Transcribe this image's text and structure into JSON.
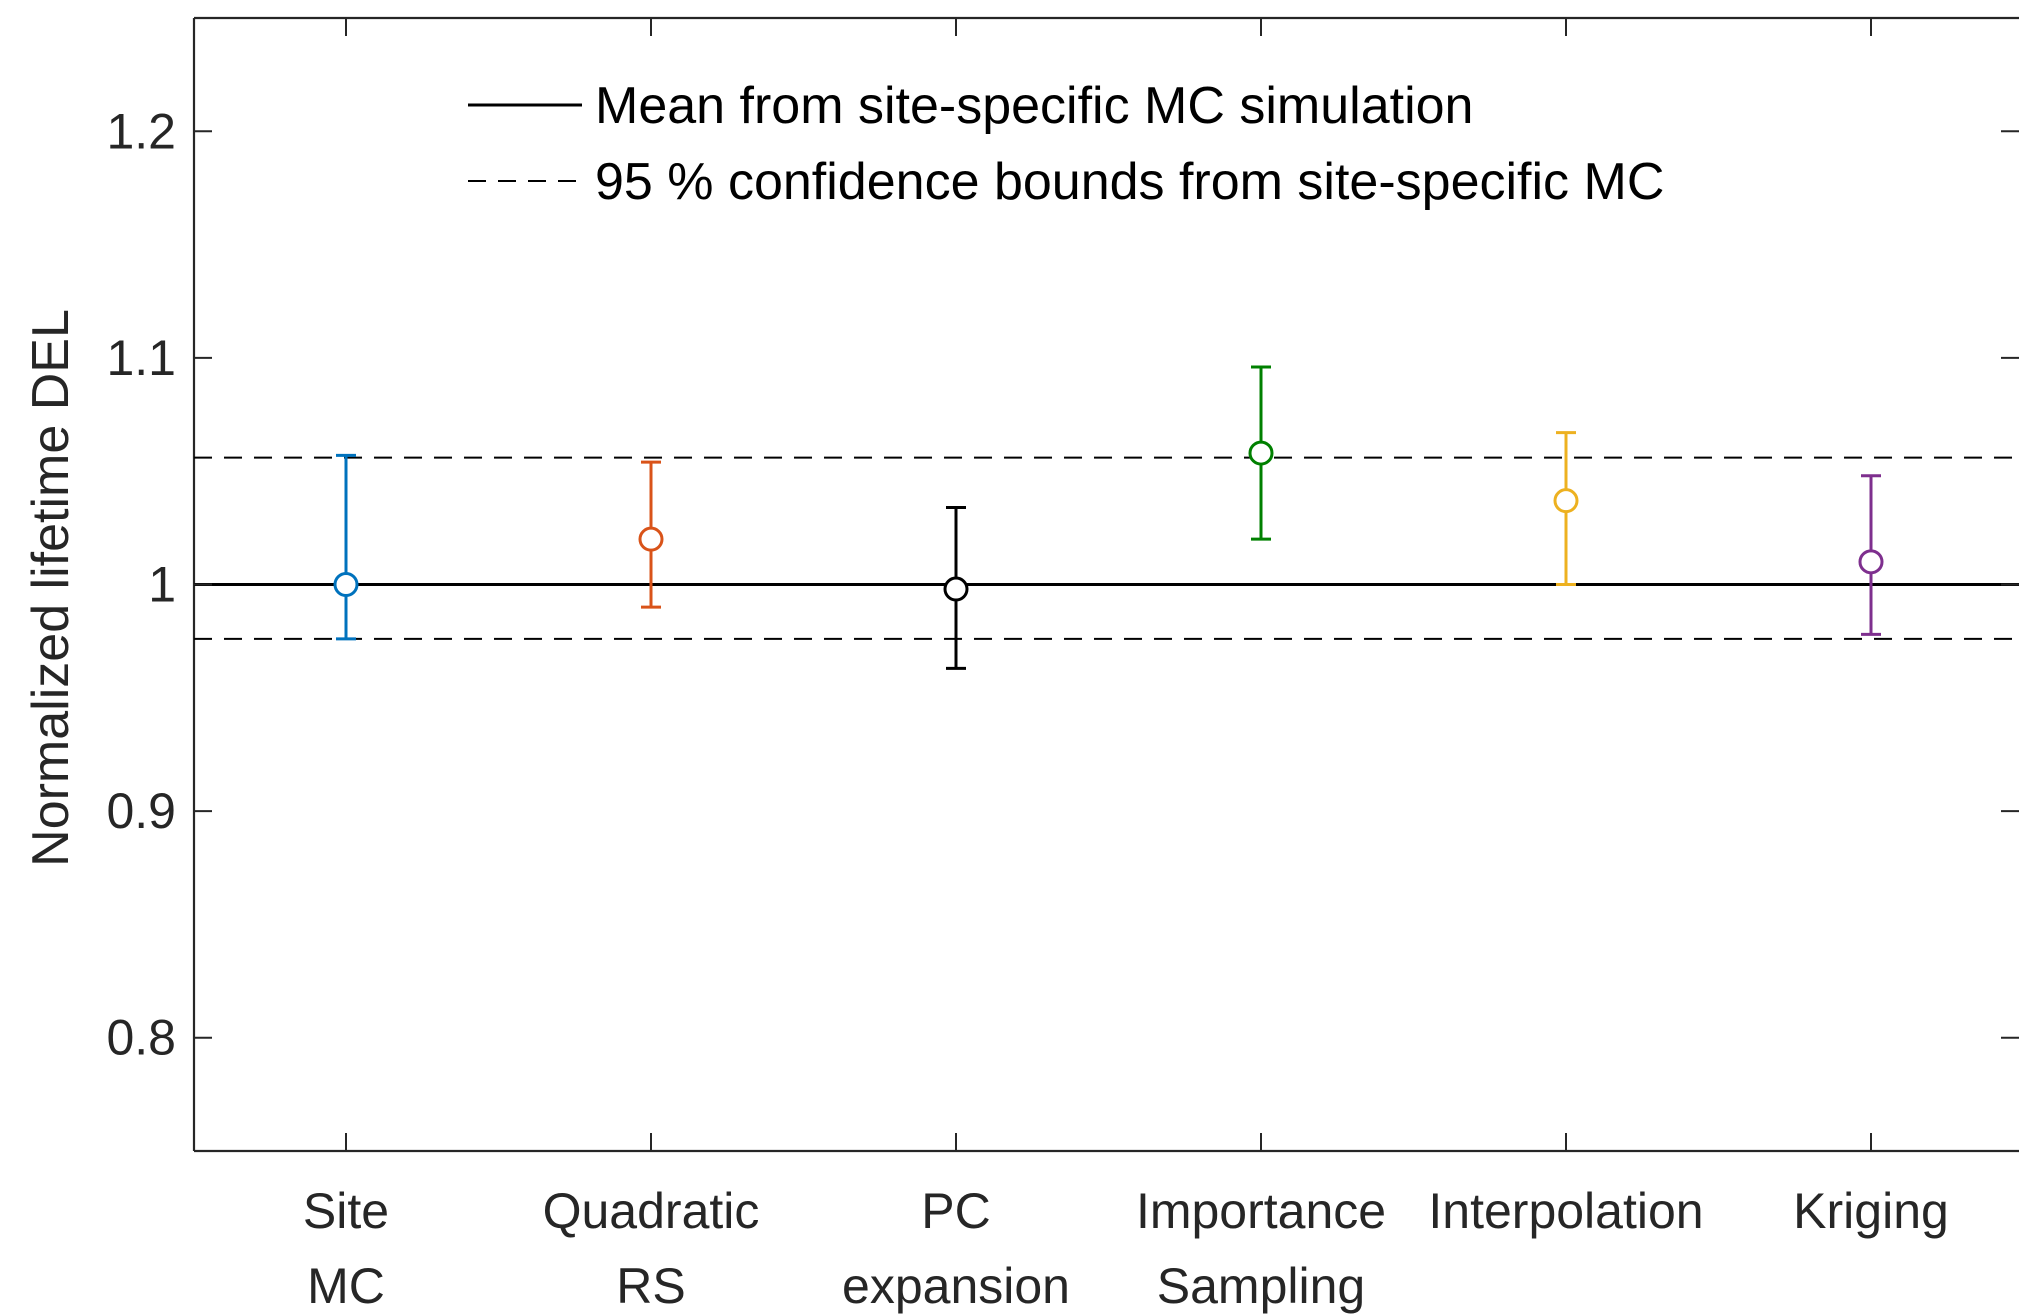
{
  "chart_data": {
    "type": "errorbar",
    "title": "",
    "xlabel": "",
    "ylabel": "Normalized lifetime DEL",
    "ylim": [
      0.75,
      1.25
    ],
    "yticks": [
      "0.8",
      "0.9",
      "1",
      "1.1",
      "1.2"
    ],
    "categories": [
      {
        "lines": [
          "Site",
          "MC"
        ]
      },
      {
        "lines": [
          "Quadratic",
          "RS"
        ]
      },
      {
        "lines": [
          "PC",
          "expansion"
        ]
      },
      {
        "lines": [
          "Importance",
          "Sampling"
        ]
      },
      {
        "lines": [
          "Interpolation"
        ]
      },
      {
        "lines": [
          "Kriging"
        ]
      }
    ],
    "points": [
      {
        "mean": 1.0,
        "lower": 0.976,
        "upper": 1.057,
        "color": "#0072BD"
      },
      {
        "mean": 1.02,
        "lower": 0.99,
        "upper": 1.054,
        "color": "#D95319"
      },
      {
        "mean": 0.998,
        "lower": 0.963,
        "upper": 1.034,
        "color": "#000000"
      },
      {
        "mean": 1.058,
        "lower": 1.02,
        "upper": 1.096,
        "color": "#008000"
      },
      {
        "mean": 1.037,
        "lower": 1.0,
        "upper": 1.067,
        "color": "#EDB120"
      },
      {
        "mean": 1.01,
        "lower": 0.978,
        "upper": 1.048,
        "color": "#7E2F8E"
      }
    ],
    "reference_lines": {
      "mean": 1.0,
      "lower": 0.976,
      "upper": 1.056
    },
    "legend": {
      "placement": "top-center",
      "entries": [
        {
          "label": "Mean from site-specific MC simulation",
          "style": "solid"
        },
        {
          "label": "95 % confidence bounds from site-specific MC",
          "style": "dashed"
        }
      ]
    },
    "grid": false
  }
}
